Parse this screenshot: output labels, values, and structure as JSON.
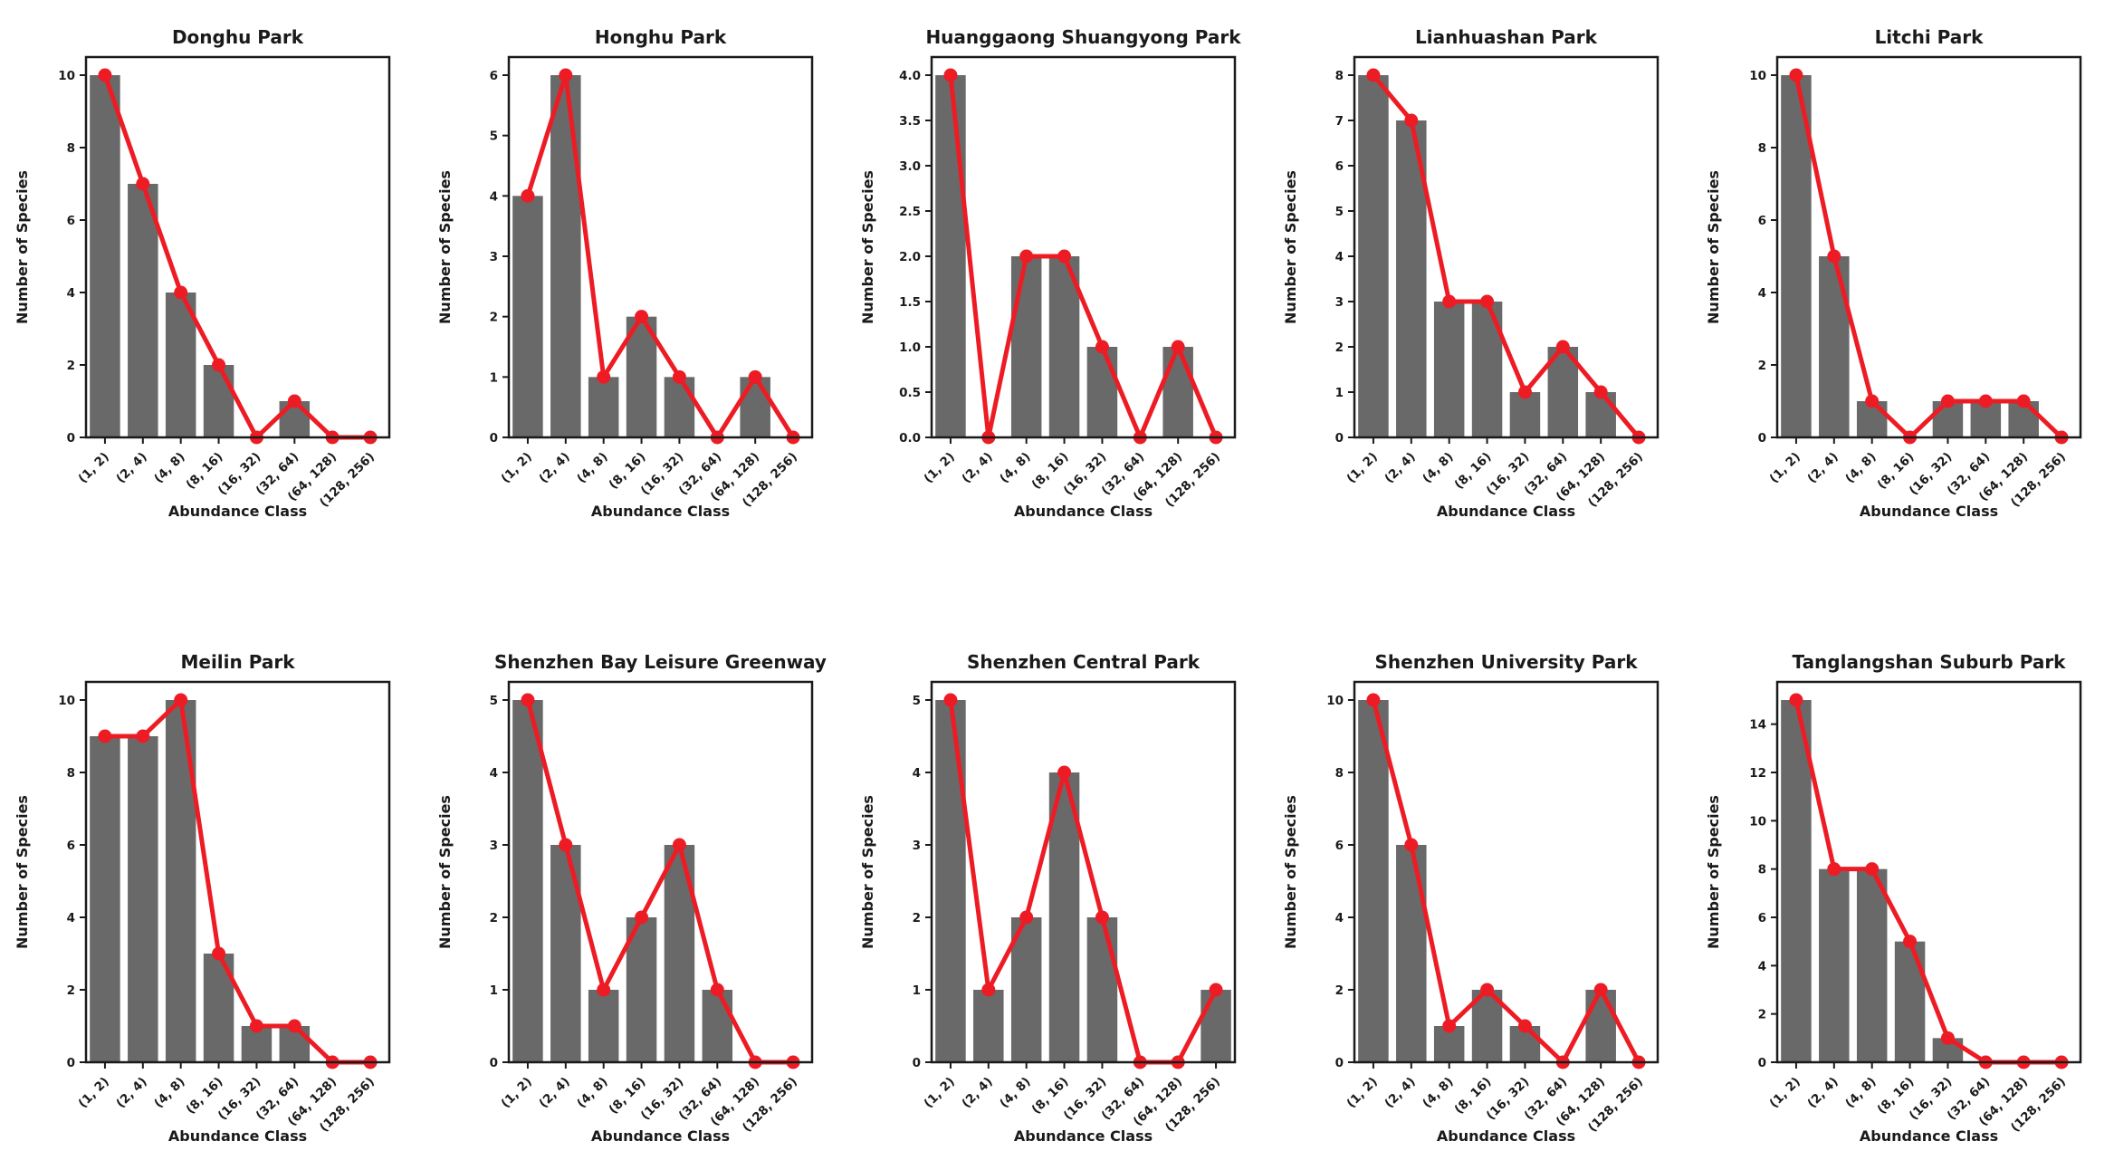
{
  "figure": {
    "xlabel": "Abundance Class",
    "ylabel": "Number of Species",
    "categories": [
      "(1, 2)",
      "(2, 4)",
      "(4, 8)",
      "(8, 16)",
      "(16, 32)",
      "(32, 64)",
      "(64, 128)",
      "(128, 256)"
    ],
    "bar_color": "#696969",
    "line_color": "#ED1C24",
    "axis_color": "#1a1a1a",
    "background_color": "#ffffff",
    "layout": "2 rows x 5 columns, frame box on, no gridlines, x tick labels rotated 45 degrees"
  },
  "chart_data": [
    {
      "type": "bar",
      "overlay": "line",
      "title": "Donghu Park",
      "values": [
        10,
        7,
        4,
        2,
        0,
        1,
        0,
        0
      ],
      "yticks": [
        0,
        2,
        4,
        6,
        8,
        10
      ],
      "ytick_labels": [
        "0",
        "2",
        "4",
        "6",
        "8",
        "10"
      ],
      "ylim": [
        0,
        10.5
      ]
    },
    {
      "type": "bar",
      "overlay": "line",
      "title": "Honghu Park",
      "values": [
        4,
        6,
        1,
        2,
        1,
        0,
        1,
        0
      ],
      "yticks": [
        0,
        1,
        2,
        3,
        4,
        5,
        6
      ],
      "ytick_labels": [
        "0",
        "1",
        "2",
        "3",
        "4",
        "5",
        "6"
      ],
      "ylim": [
        0,
        6.3
      ]
    },
    {
      "type": "bar",
      "overlay": "line",
      "title": "Huanggaong Shuangyong Park",
      "values": [
        4,
        0,
        2,
        2,
        1,
        0,
        1,
        0
      ],
      "yticks": [
        0,
        0.5,
        1,
        1.5,
        2,
        2.5,
        3,
        3.5,
        4
      ],
      "ytick_labels": [
        "0.0",
        "0.5",
        "1.0",
        "1.5",
        "2.0",
        "2.5",
        "3.0",
        "3.5",
        "4.0"
      ],
      "ylim": [
        0,
        4.2
      ]
    },
    {
      "type": "bar",
      "overlay": "line",
      "title": "Lianhuashan Park",
      "values": [
        8,
        7,
        3,
        3,
        1,
        2,
        1,
        0
      ],
      "yticks": [
        0,
        1,
        2,
        3,
        4,
        5,
        6,
        7,
        8
      ],
      "ytick_labels": [
        "0",
        "1",
        "2",
        "3",
        "4",
        "5",
        "6",
        "7",
        "8"
      ],
      "ylim": [
        0,
        8.4
      ]
    },
    {
      "type": "bar",
      "overlay": "line",
      "title": "Litchi Park",
      "values": [
        10,
        5,
        1,
        0,
        1,
        1,
        1,
        0
      ],
      "yticks": [
        0,
        2,
        4,
        6,
        8,
        10
      ],
      "ytick_labels": [
        "0",
        "2",
        "4",
        "6",
        "8",
        "10"
      ],
      "ylim": [
        0,
        10.5
      ]
    },
    {
      "type": "bar",
      "overlay": "line",
      "title": "Meilin Park",
      "values": [
        9,
        9,
        10,
        3,
        1,
        1,
        0,
        0
      ],
      "yticks": [
        0,
        2,
        4,
        6,
        8,
        10
      ],
      "ytick_labels": [
        "0",
        "2",
        "4",
        "6",
        "8",
        "10"
      ],
      "ylim": [
        0,
        10.5
      ]
    },
    {
      "type": "bar",
      "overlay": "line",
      "title": "Shenzhen Bay Leisure Greenway",
      "values": [
        5,
        3,
        1,
        2,
        3,
        1,
        0,
        0
      ],
      "yticks": [
        0,
        1,
        2,
        3,
        4,
        5
      ],
      "ytick_labels": [
        "0",
        "1",
        "2",
        "3",
        "4",
        "5"
      ],
      "ylim": [
        0,
        5.25
      ]
    },
    {
      "type": "bar",
      "overlay": "line",
      "title": "Shenzhen Central Park",
      "values": [
        5,
        1,
        2,
        4,
        2,
        0,
        0,
        1
      ],
      "yticks": [
        0,
        1,
        2,
        3,
        4,
        5
      ],
      "ytick_labels": [
        "0",
        "1",
        "2",
        "3",
        "4",
        "5"
      ],
      "ylim": [
        0,
        5.25
      ]
    },
    {
      "type": "bar",
      "overlay": "line",
      "title": "Shenzhen University Park",
      "values": [
        10,
        6,
        1,
        2,
        1,
        0,
        2,
        0
      ],
      "yticks": [
        0,
        2,
        4,
        6,
        8,
        10
      ],
      "ytick_labels": [
        "0",
        "2",
        "4",
        "6",
        "8",
        "10"
      ],
      "ylim": [
        0,
        10.5
      ]
    },
    {
      "type": "bar",
      "overlay": "line",
      "title": "Tanglangshan Suburb Park",
      "values": [
        15,
        8,
        8,
        5,
        1,
        0,
        0,
        0
      ],
      "yticks": [
        0,
        2,
        4,
        6,
        8,
        10,
        12,
        14
      ],
      "ytick_labels": [
        "0",
        "2",
        "4",
        "6",
        "8",
        "10",
        "12",
        "14"
      ],
      "ylim": [
        0,
        15.75
      ]
    }
  ]
}
